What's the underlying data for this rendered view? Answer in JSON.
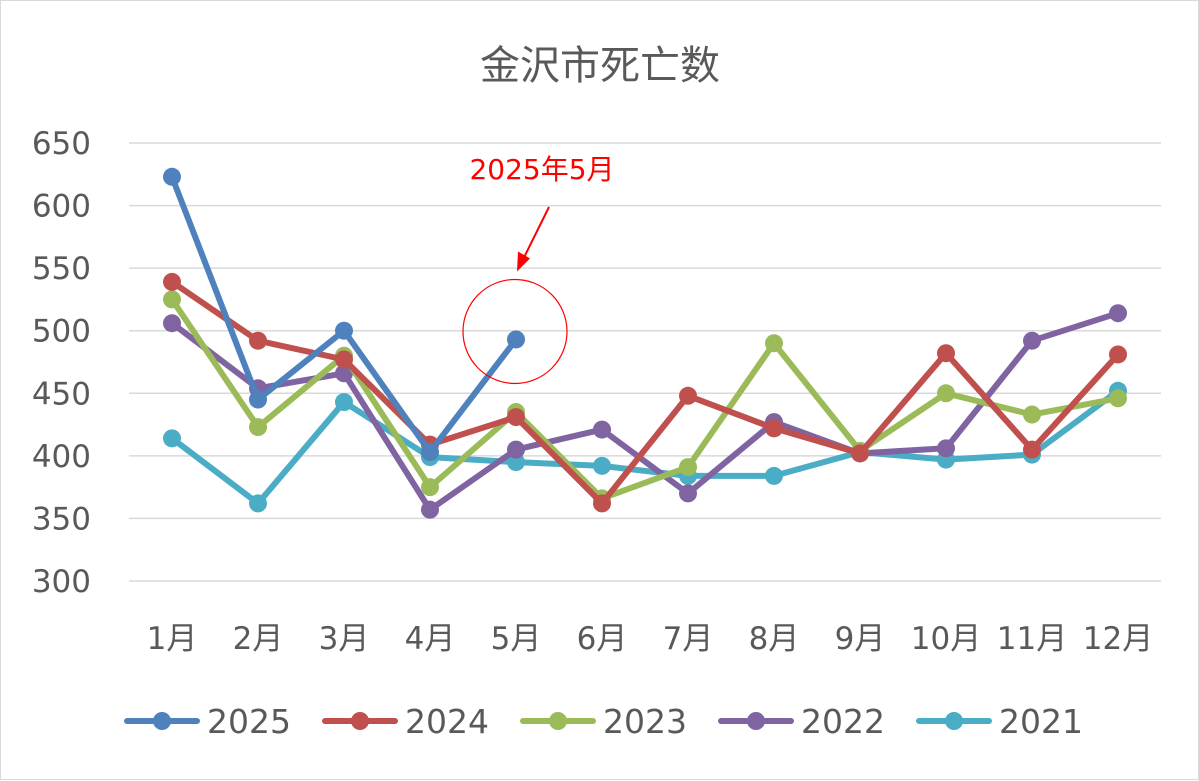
{
  "chart_data": {
    "type": "line",
    "title": "金沢市死亡数",
    "xlabel": "",
    "ylabel": "",
    "categories": [
      "1月",
      "2月",
      "3月",
      "4月",
      "5月",
      "6月",
      "7月",
      "8月",
      "9月",
      "10月",
      "11月",
      "12月"
    ],
    "ylim": [
      300,
      650
    ],
    "yticks": [
      300,
      350,
      400,
      450,
      500,
      550,
      600,
      650
    ],
    "grid": true,
    "legend_position": "bottom",
    "series": [
      {
        "name": "2025",
        "color": "#4f81bd",
        "values": [
          623,
          445,
          500,
          403,
          493,
          null,
          null,
          null,
          null,
          null,
          null,
          null
        ]
      },
      {
        "name": "2024",
        "color": "#c0504d",
        "values": [
          539,
          492,
          477,
          409,
          431,
          362,
          448,
          422,
          402,
          482,
          405,
          481
        ]
      },
      {
        "name": "2023",
        "color": "#9bbb59",
        "values": [
          525,
          423,
          480,
          375,
          435,
          366,
          391,
          490,
          404,
          450,
          433,
          446
        ]
      },
      {
        "name": "2022",
        "color": "#8064a2",
        "values": [
          506,
          454,
          466,
          357,
          405,
          421,
          370,
          427,
          402,
          406,
          492,
          514
        ]
      },
      {
        "name": "2021",
        "color": "#4bacc6",
        "values": [
          414,
          362,
          443,
          399,
          395,
          392,
          384,
          384,
          403,
          397,
          401,
          452
        ]
      }
    ],
    "annotation": {
      "text": "2025年5月",
      "color": "#ff0000",
      "series": "2025",
      "category": "5月"
    }
  }
}
